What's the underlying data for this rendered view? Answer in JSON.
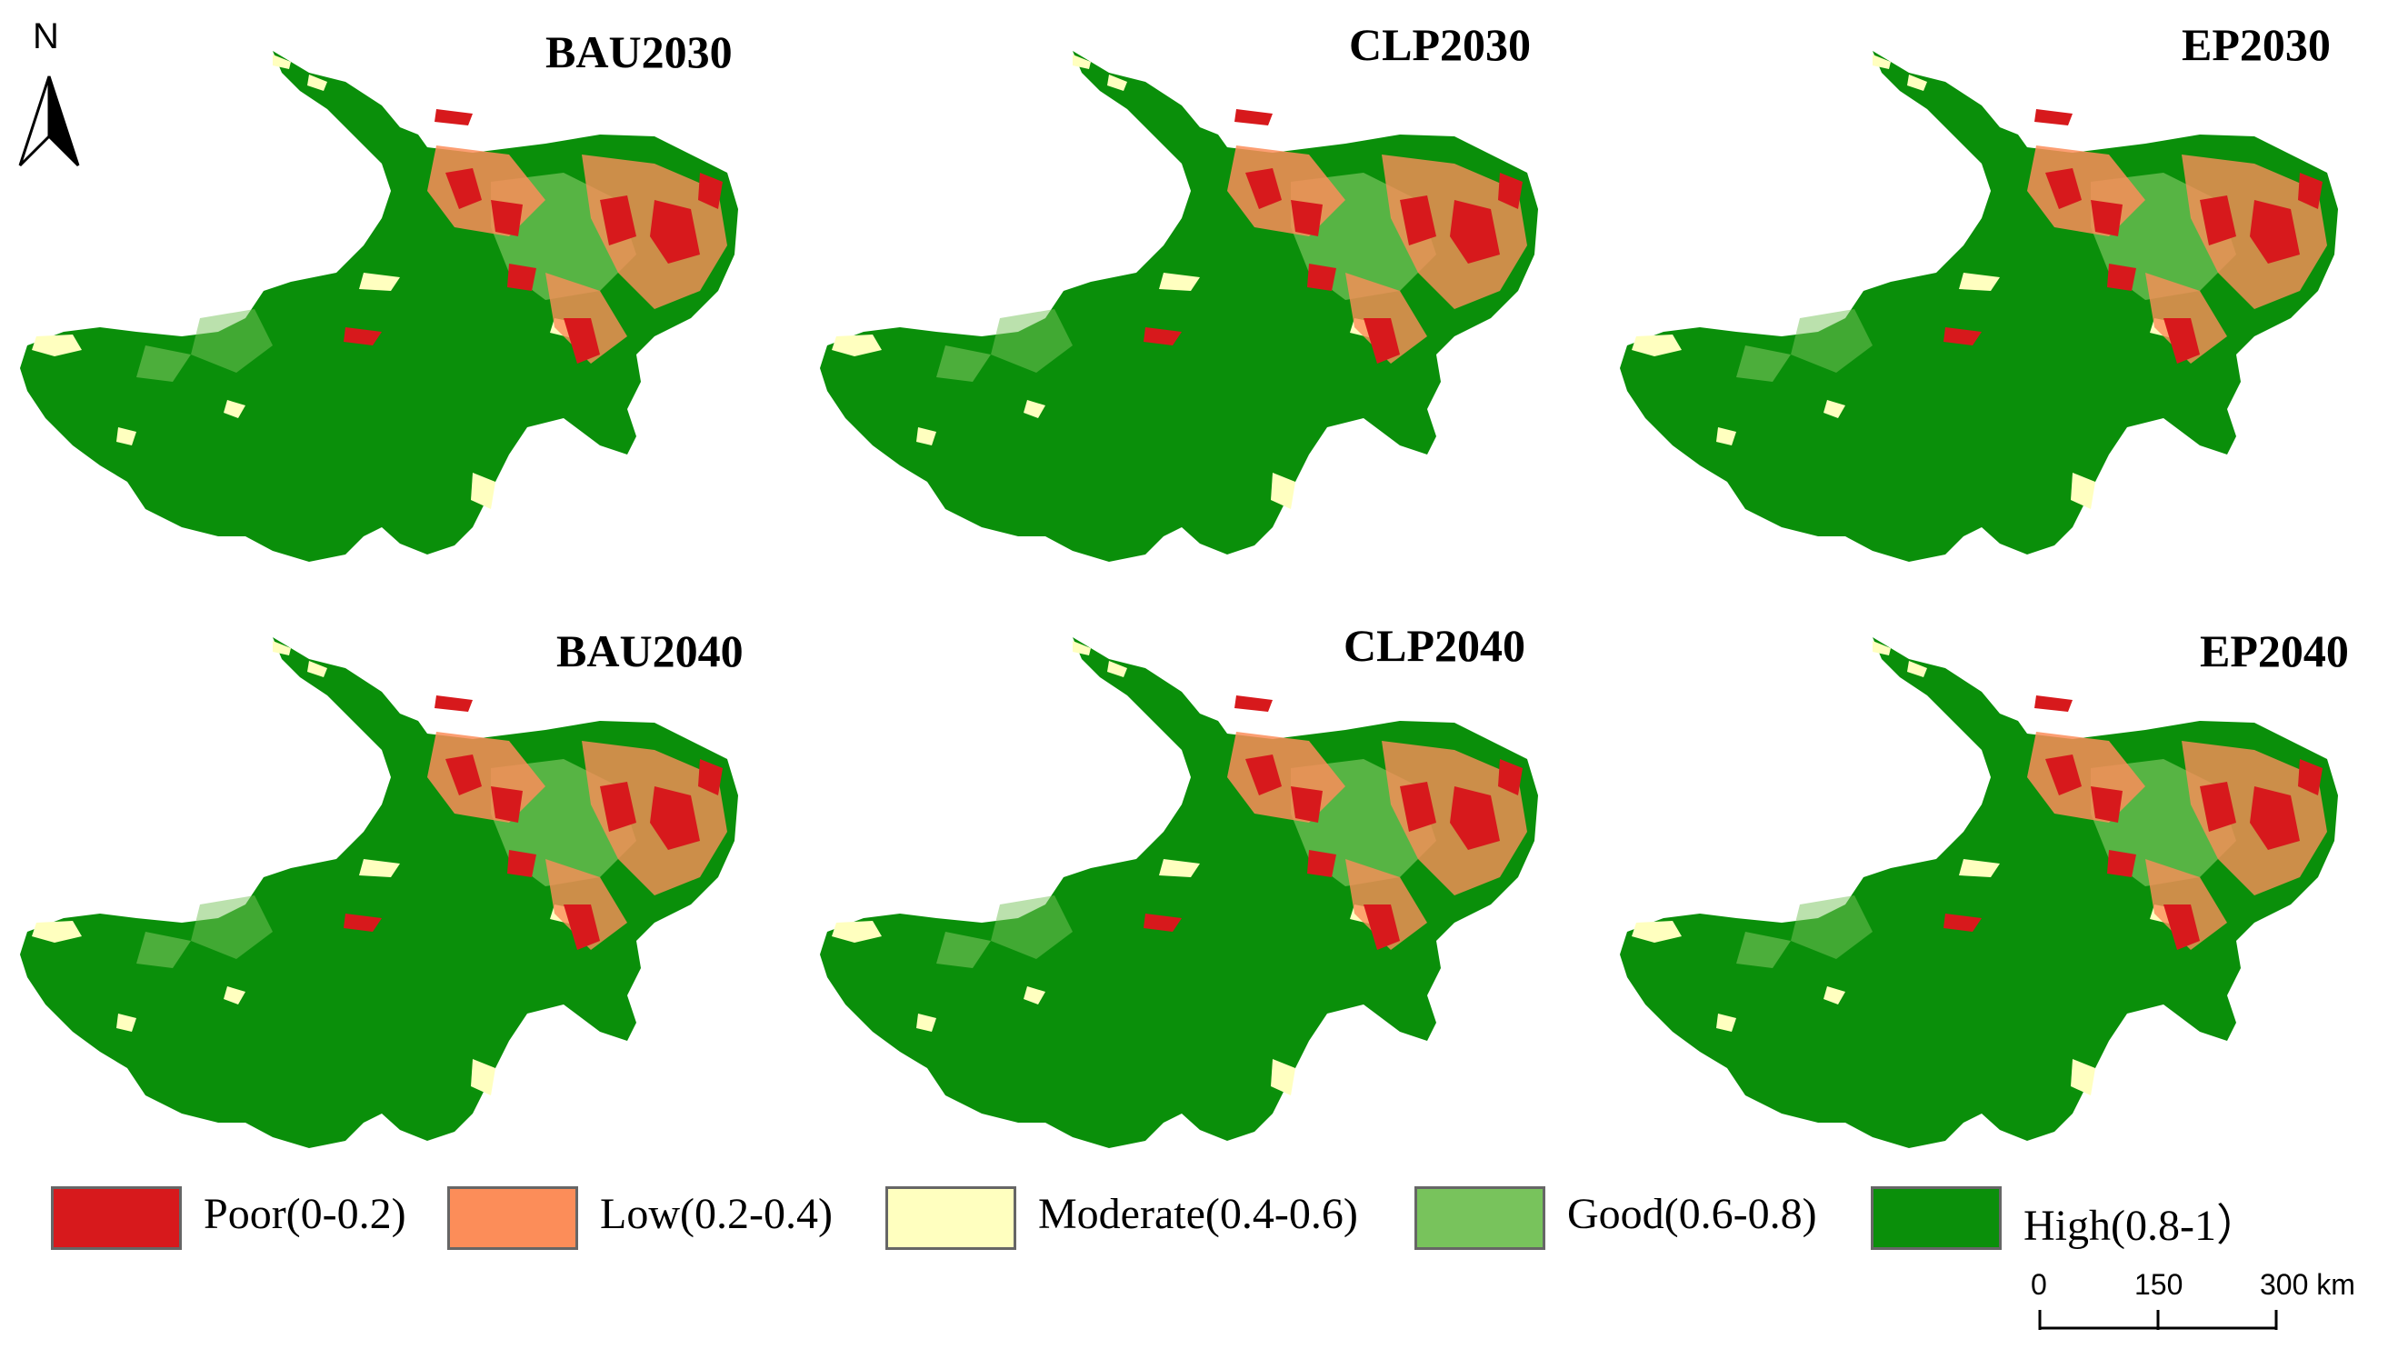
{
  "north_arrow": {
    "label": "N"
  },
  "panels": [
    {
      "title": "BAU2030"
    },
    {
      "title": "CLP2030"
    },
    {
      "title": "EP2030"
    },
    {
      "title": "BAU2040"
    },
    {
      "title": "CLP2040"
    },
    {
      "title": "EP2040"
    }
  ],
  "legend": [
    {
      "label": "Poor(0-0.2)",
      "color": "#d7191c"
    },
    {
      "label": "Low(0.2-0.4)",
      "color": "#fc8d59"
    },
    {
      "label": "Moderate(0.4-0.6)",
      "color": "#ffffbf"
    },
    {
      "label": "Good(0.6-0.8)",
      "color": "#78c35c"
    },
    {
      "label": "High(0.8-1）",
      "color": "#0a8f0a"
    }
  ],
  "scale_bar": {
    "ticks": [
      "0",
      "150",
      "300 km"
    ]
  }
}
